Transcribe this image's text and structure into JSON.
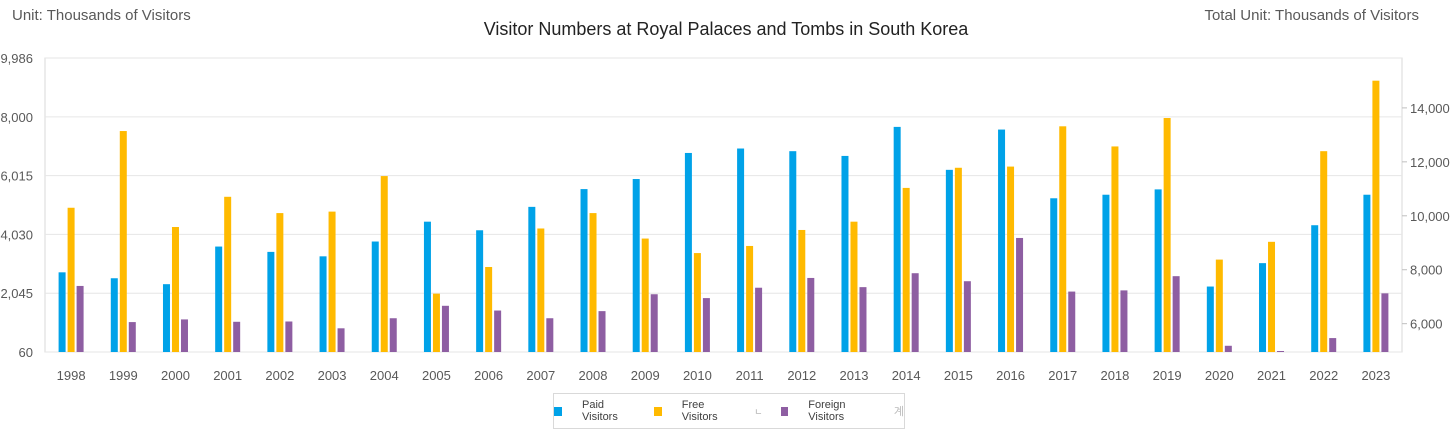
{
  "header": {
    "left_unit": "Unit: Thousands of Visitors",
    "right_unit": "Total Unit: Thousands of Visitors"
  },
  "chart_data": {
    "type": "bar",
    "title": "Visitor Numbers at Royal Palaces and Tombs in South Korea",
    "categories": [
      "1998",
      "1999",
      "2000",
      "2001",
      "2002",
      "2003",
      "2004",
      "2005",
      "2006",
      "2007",
      "2008",
      "2009",
      "2010",
      "2011",
      "2012",
      "2013",
      "2014",
      "2015",
      "2016",
      "2017",
      "2018",
      "2019",
      "2020",
      "2021",
      "2022",
      "2023"
    ],
    "series": [
      {
        "name": "Paid Visitors",
        "color": "#00a2e8",
        "axis": "left",
        "values": [
          2750,
          2550,
          2350,
          3620,
          3440,
          3290,
          3790,
          4460,
          4170,
          4960,
          5560,
          5900,
          6780,
          6930,
          6840,
          6680,
          7660,
          6210,
          7570,
          5250,
          5370,
          5550,
          2270,
          3060,
          4340,
          5370
        ]
      },
      {
        "name": "Free Visitors",
        "color": "#ffba00",
        "axis": "left",
        "values": [
          4930,
          7520,
          4280,
          5300,
          4750,
          4800,
          6000,
          2030,
          2930,
          4230,
          4750,
          3890,
          3400,
          3640,
          4180,
          4460,
          5600,
          6280,
          6320,
          7680,
          7000,
          7960,
          3180,
          3780,
          6840,
          9220
        ]
      },
      {
        "name": "Foreign Visitors",
        "color": "#8e5ea2",
        "axis": "left",
        "values": [
          2290,
          1070,
          1160,
          1080,
          1090,
          860,
          1200,
          1620,
          1460,
          1200,
          1440,
          2010,
          1880,
          2230,
          2560,
          2250,
          2720,
          2450,
          3910,
          2100,
          2140,
          2620,
          270,
          90,
          530,
          2040
        ]
      }
    ],
    "y_left": {
      "ticks": [
        "60",
        "2,045",
        "4,030",
        "6,015",
        "8,000",
        "9,986"
      ],
      "min": 60,
      "max": 9986
    },
    "y_right": {
      "ticks": [
        "6,000",
        "8,000",
        "10,000",
        "12,000",
        "14,000"
      ],
      "min": 4950,
      "max": 15850
    },
    "legend_position": "bottom",
    "legend_extra_marks": [
      "ㄴ",
      "계"
    ]
  }
}
